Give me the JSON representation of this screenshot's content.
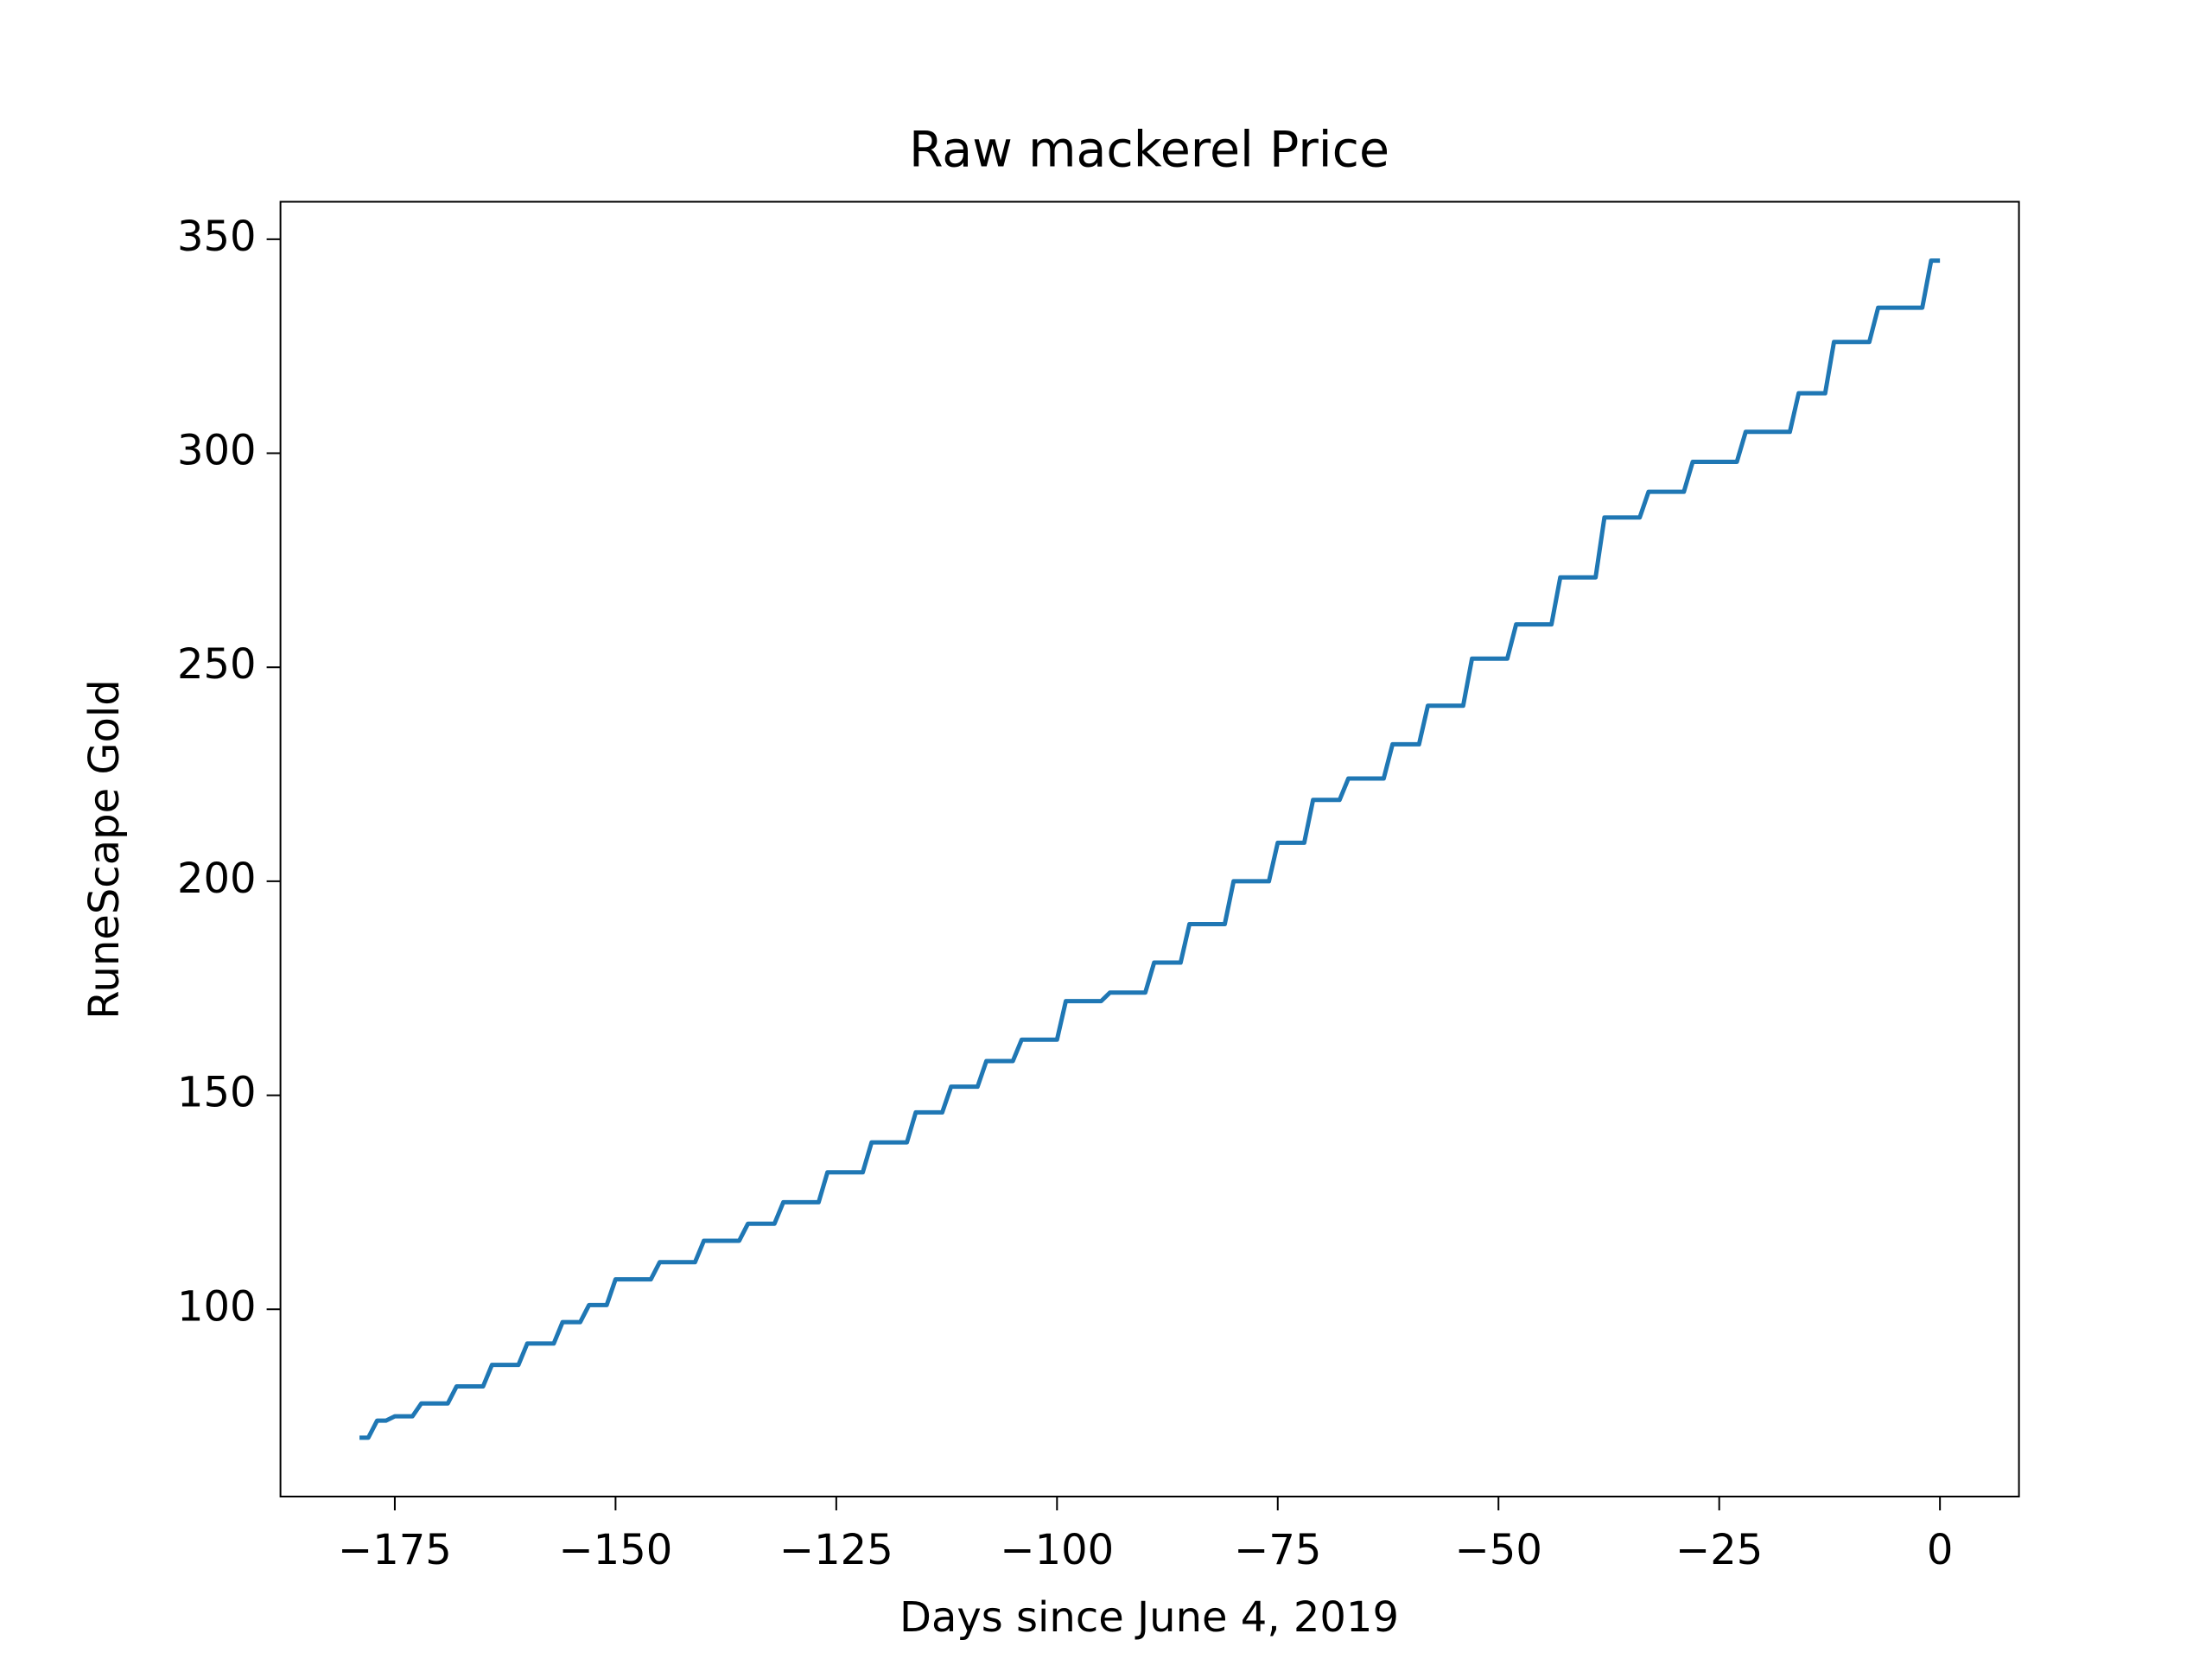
{
  "chart_data": {
    "type": "line",
    "title": "Raw mackerel Price",
    "xlabel": "Days since June 4, 2019",
    "ylabel": "RuneScape Gold",
    "x": [
      -179,
      -178,
      -177,
      -176,
      -175,
      -174,
      -173,
      -172,
      -171,
      -170,
      -169,
      -168,
      -167,
      -166,
      -165,
      -164,
      -163,
      -162,
      -161,
      -160,
      -159,
      -158,
      -157,
      -156,
      -155,
      -154,
      -153,
      -152,
      -151,
      -150,
      -149,
      -148,
      -147,
      -146,
      -145,
      -144,
      -143,
      -142,
      -141,
      -140,
      -139,
      -138,
      -137,
      -136,
      -135,
      -134,
      -133,
      -132,
      -131,
      -130,
      -129,
      -128,
      -127,
      -126,
      -125,
      -124,
      -123,
      -122,
      -121,
      -120,
      -119,
      -118,
      -117,
      -116,
      -115,
      -114,
      -113,
      -112,
      -111,
      -110,
      -109,
      -108,
      -107,
      -106,
      -105,
      -104,
      -103,
      -102,
      -101,
      -100,
      -99,
      -98,
      -97,
      -96,
      -95,
      -94,
      -93,
      -92,
      -91,
      -90,
      -89,
      -88,
      -87,
      -86,
      -85,
      -84,
      -83,
      -82,
      -81,
      -80,
      -79,
      -78,
      -77,
      -76,
      -75,
      -74,
      -73,
      -72,
      -71,
      -70,
      -69,
      -68,
      -67,
      -66,
      -65,
      -64,
      -63,
      -62,
      -61,
      -60,
      -59,
      -58,
      -57,
      -56,
      -55,
      -54,
      -53,
      -52,
      -51,
      -50,
      -49,
      -48,
      -47,
      -46,
      -45,
      -44,
      -43,
      -42,
      -41,
      -40,
      -39,
      -38,
      -37,
      -36,
      -35,
      -34,
      -33,
      -32,
      -31,
      -30,
      -29,
      -28,
      -27,
      -26,
      -25,
      -24,
      -23,
      -22,
      -21,
      -20,
      -19,
      -18,
      -17,
      -16,
      -15,
      -14,
      -13,
      -12,
      -11,
      -10,
      -9,
      -8,
      -7,
      -6,
      -5,
      -4,
      -3,
      -2,
      -1,
      0
    ],
    "series": [
      {
        "name": "Raw mackerel",
        "color": "#1f77b4",
        "values": [
          70,
          70,
          74,
          74,
          75,
          75,
          75,
          78,
          78,
          78,
          78,
          82,
          82,
          82,
          82,
          87,
          87,
          87,
          87,
          92,
          92,
          92,
          92,
          97,
          97,
          97,
          101,
          101,
          101,
          107,
          107,
          107,
          107,
          107,
          111,
          111,
          111,
          111,
          111,
          116,
          116,
          116,
          116,
          116,
          120,
          120,
          120,
          120,
          125,
          125,
          125,
          125,
          125,
          132,
          132,
          132,
          132,
          132,
          139,
          139,
          139,
          139,
          139,
          146,
          146,
          146,
          146,
          152,
          152,
          152,
          152,
          158,
          158,
          158,
          158,
          163,
          163,
          163,
          163,
          163,
          172,
          172,
          172,
          172,
          172,
          174,
          174,
          174,
          174,
          174,
          181,
          181,
          181,
          181,
          190,
          190,
          190,
          190,
          190,
          200,
          200,
          200,
          200,
          200,
          209,
          209,
          209,
          209,
          219,
          219,
          219,
          219,
          224,
          224,
          224,
          224,
          224,
          232,
          232,
          232,
          232,
          241,
          241,
          241,
          241,
          241,
          252,
          252,
          252,
          252,
          252,
          260,
          260,
          260,
          260,
          260,
          271,
          271,
          271,
          271,
          271,
          285,
          285,
          285,
          285,
          285,
          291,
          291,
          291,
          291,
          291,
          298,
          298,
          298,
          298,
          298,
          298,
          305,
          305,
          305,
          305,
          305,
          305,
          314,
          314,
          314,
          314,
          326,
          326,
          326,
          326,
          326,
          334,
          334,
          334,
          334,
          334,
          334,
          345,
          345
        ]
      }
    ],
    "xlim": [
      -187.95,
      8.95
    ],
    "ylim": [
      56.25,
      358.75
    ],
    "xticks": [
      {
        "value": -175,
        "label": "−175"
      },
      {
        "value": -150,
        "label": "−150"
      },
      {
        "value": -125,
        "label": "−125"
      },
      {
        "value": -100,
        "label": "−100"
      },
      {
        "value": -75,
        "label": "−75"
      },
      {
        "value": -50,
        "label": "−50"
      },
      {
        "value": -25,
        "label": "−25"
      },
      0
    ],
    "yticks": [
      100,
      150,
      200,
      250,
      300,
      350
    ],
    "grid": false
  }
}
